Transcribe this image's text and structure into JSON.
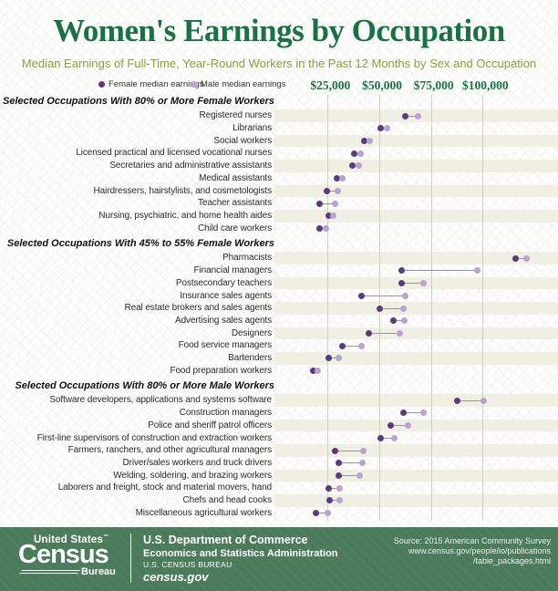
{
  "header": {
    "title": "Women's Earnings by Occupation",
    "subtitle": "Median Earnings of Full-Time, Year-Round Workers in the Past 12 Months by Sex and Occupation"
  },
  "legend": {
    "female_label": "Female median earnings",
    "male_label": "Male median earnings"
  },
  "colors": {
    "female_dot": "#583c7c",
    "male_dot": "#b9a3d2",
    "title_green": "#1b7145",
    "subtitle_olive": "#8ca03c",
    "footer_green": "#4b7b5a",
    "row_band": "#f0efe3",
    "gridline": "#cdd0bc",
    "connector": "#979797"
  },
  "chart_data": {
    "type": "scatter",
    "subtype": "dumbbell-dot-plot",
    "x_axis": {
      "tick_labels": [
        "$25,000",
        "$50,000",
        "$75,000",
        "$100,000"
      ],
      "tick_values": [
        25000,
        50000,
        75000,
        100000
      ],
      "range": [
        0,
        136500
      ],
      "grid": true
    },
    "series_names": [
      "Female median earnings",
      "Male median earnings"
    ],
    "sections": [
      {
        "header": "Selected Occupations With 80% or More Female Workers",
        "rows": [
          {
            "label": "Registered nurses",
            "female": 62500,
            "male": 68600
          },
          {
            "label": "Librarians",
            "female": 50600,
            "male": 53700
          },
          {
            "label": "Social workers",
            "female": 42600,
            "male": 45300
          },
          {
            "label": "Licensed practical and licensed vocational nurses",
            "female": 37900,
            "male": 41000
          },
          {
            "label": "Secretaries and administrative assistants",
            "female": 36800,
            "male": 40000
          },
          {
            "label": "Medical assistants",
            "female": 29300,
            "male": 31900
          },
          {
            "label": "Hairdressers, hairstylists, and cosmetologists",
            "female": 24700,
            "male": 29700
          },
          {
            "label": "Teacher assistants",
            "female": 21200,
            "male": 28800
          },
          {
            "label": "Nursing, psychiatric, and home health aides",
            "female": 25300,
            "male": 27800
          },
          {
            "label": "Child care workers",
            "female": 20900,
            "male": 24000
          }
        ]
      },
      {
        "header": "Selected Occupations With 45% to 55% Female Workers",
        "rows": [
          {
            "label": "Pharmacists",
            "female": 116000,
            "male": 121400
          },
          {
            "label": "Financial managers",
            "female": 60900,
            "male": 97500
          },
          {
            "label": "Postsecondary teachers",
            "female": 61000,
            "male": 71500
          },
          {
            "label": "Insurance sales agents",
            "female": 41200,
            "male": 62500
          },
          {
            "label": "Real estate brokers and sales agents",
            "female": 50000,
            "male": 61800
          },
          {
            "label": "Advertising sales agents",
            "female": 56900,
            "male": 62000
          },
          {
            "label": "Designers",
            "female": 45100,
            "male": 59800
          },
          {
            "label": "Food service managers",
            "female": 31900,
            "male": 41500
          },
          {
            "label": "Bartenders",
            "female": 25300,
            "male": 30400
          },
          {
            "label": "Food preparation workers",
            "female": 18200,
            "male": 20100
          }
        ]
      },
      {
        "header": "Selected Occupations With 80% or More Male Workers",
        "rows": [
          {
            "label": "Software developers, applications and systems software",
            "female": 87500,
            "male": 100700
          },
          {
            "label": "Construction managers",
            "female": 61800,
            "male": 71300
          },
          {
            "label": "Police and sheriff patrol officers",
            "female": 55400,
            "male": 64000
          },
          {
            "label": "First-line supervisors of construction and extraction workers",
            "female": 50600,
            "male": 57200
          },
          {
            "label": "Farmers, ranchers, and other agricultural managers",
            "female": 28700,
            "male": 42100
          },
          {
            "label": "Driver/sales workers and truck drivers",
            "female": 30400,
            "male": 41800
          },
          {
            "label": "Welding, soldering, and brazing workers",
            "female": 30400,
            "male": 40600
          },
          {
            "label": "Laborers and freight, stock and material movers, hand",
            "female": 25700,
            "male": 30900
          },
          {
            "label": "Chefs and head cooks",
            "female": 25900,
            "male": 30900
          },
          {
            "label": "Miscellaneous agricultural workers",
            "female": 19400,
            "male": 25000
          }
        ]
      }
    ]
  },
  "footer": {
    "logo_top": "United States",
    "logo_tm": "™",
    "logo_main": "Census",
    "logo_sub": "Bureau",
    "dept_line1": "U.S. Department of Commerce",
    "dept_line2": "Economics and Statistics Administration",
    "dept_line3": "U.S. CENSUS BUREAU",
    "dept_line4": "census.gov",
    "source_line1": "Source: 2015 American Community Survey",
    "source_line2": "www.census.gov/people/io/publications",
    "source_line3": "/table_packages.html"
  }
}
